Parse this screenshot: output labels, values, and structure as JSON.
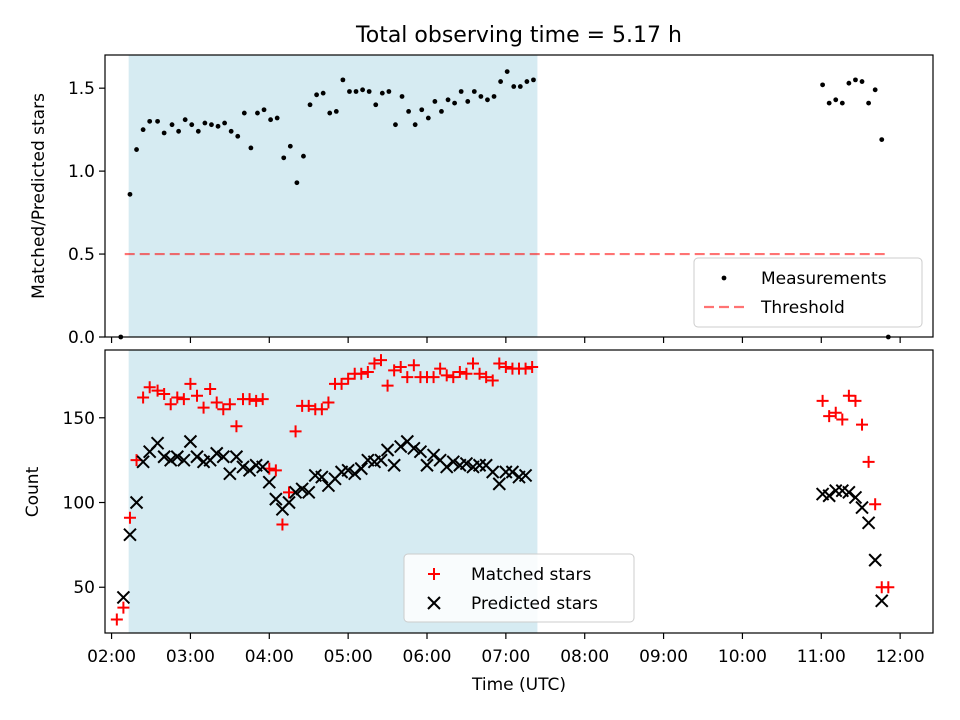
{
  "figure_title": "Total observing time = 5.17 h",
  "chart_data": [
    {
      "type": "scatter",
      "ylabel": "Matched/Predicted stars",
      "xlabel": "",
      "xlim": [
        "01:55",
        "12:25"
      ],
      "ylim": [
        0,
        1.7
      ],
      "yticks": [
        "0.0",
        "0.5",
        "1.0",
        "1.5"
      ],
      "xticks": [
        "02:00",
        "03:00",
        "04:00",
        "05:00",
        "06:00",
        "07:00",
        "08:00",
        "09:00",
        "10:00",
        "11:00",
        "12:00"
      ],
      "shaded_region": {
        "x": [
          "02:13",
          "07:24"
        ],
        "color": "#add8e6"
      },
      "legend": {
        "location": "lower-right",
        "entries": [
          "Measurements",
          "Threshold"
        ]
      },
      "threshold": {
        "name": "Threshold",
        "value": 0.5,
        "x": [
          "02:10",
          "11:50"
        ],
        "color": "#ff0000"
      },
      "series": [
        {
          "name": "Measurements",
          "marker": "dot",
          "color": "#000000",
          "points": [
            [
              "02:07",
              0.0
            ],
            [
              "02:14",
              0.86
            ],
            [
              "02:19",
              1.13
            ],
            [
              "02:24",
              1.25
            ],
            [
              "02:29",
              1.3
            ],
            [
              "02:35",
              1.3
            ],
            [
              "02:40",
              1.23
            ],
            [
              "02:46",
              1.28
            ],
            [
              "02:51",
              1.24
            ],
            [
              "02:56",
              1.31
            ],
            [
              "03:01",
              1.28
            ],
            [
              "03:06",
              1.24
            ],
            [
              "03:11",
              1.29
            ],
            [
              "03:16",
              1.28
            ],
            [
              "03:21",
              1.27
            ],
            [
              "03:26",
              1.29
            ],
            [
              "03:31",
              1.24
            ],
            [
              "03:36",
              1.21
            ],
            [
              "03:41",
              1.35
            ],
            [
              "03:46",
              1.14
            ],
            [
              "03:51",
              1.35
            ],
            [
              "03:56",
              1.37
            ],
            [
              "04:01",
              1.31
            ],
            [
              "04:06",
              1.32
            ],
            [
              "04:11",
              1.08
            ],
            [
              "04:16",
              1.15
            ],
            [
              "04:21",
              0.93
            ],
            [
              "04:26",
              1.09
            ],
            [
              "04:31",
              1.4
            ],
            [
              "04:36",
              1.46
            ],
            [
              "04:41",
              1.47
            ],
            [
              "04:46",
              1.35
            ],
            [
              "04:51",
              1.36
            ],
            [
              "04:56",
              1.55
            ],
            [
              "05:01",
              1.48
            ],
            [
              "05:06",
              1.48
            ],
            [
              "05:11",
              1.49
            ],
            [
              "05:16",
              1.48
            ],
            [
              "05:21",
              1.4
            ],
            [
              "05:26",
              1.47
            ],
            [
              "05:31",
              1.48
            ],
            [
              "05:36",
              1.28
            ],
            [
              "05:41",
              1.45
            ],
            [
              "05:46",
              1.36
            ],
            [
              "05:51",
              1.28
            ],
            [
              "05:56",
              1.37
            ],
            [
              "06:01",
              1.32
            ],
            [
              "06:06",
              1.42
            ],
            [
              "06:11",
              1.36
            ],
            [
              "06:16",
              1.43
            ],
            [
              "06:21",
              1.41
            ],
            [
              "06:26",
              1.48
            ],
            [
              "06:31",
              1.42
            ],
            [
              "06:36",
              1.48
            ],
            [
              "06:41",
              1.45
            ],
            [
              "06:46",
              1.43
            ],
            [
              "06:51",
              1.45
            ],
            [
              "06:56",
              1.54
            ],
            [
              "07:01",
              1.6
            ],
            [
              "07:06",
              1.51
            ],
            [
              "07:11",
              1.51
            ],
            [
              "07:16",
              1.54
            ],
            [
              "07:21",
              1.55
            ],
            [
              "11:01",
              1.52
            ],
            [
              "11:06",
              1.41
            ],
            [
              "11:11",
              1.43
            ],
            [
              "11:16",
              1.41
            ],
            [
              "11:21",
              1.53
            ],
            [
              "11:26",
              1.55
            ],
            [
              "11:31",
              1.54
            ],
            [
              "11:36",
              1.41
            ],
            [
              "11:41",
              1.49
            ],
            [
              "11:46",
              1.19
            ],
            [
              "11:51",
              0.0
            ]
          ]
        }
      ]
    },
    {
      "type": "scatter",
      "ylabel": "Count",
      "xlabel": "Time (UTC)",
      "xlim": [
        "01:55",
        "12:25"
      ],
      "ylim": [
        23,
        190
      ],
      "yticks": [
        "50",
        "100",
        "150"
      ],
      "xticks": [
        "02:00",
        "03:00",
        "04:00",
        "05:00",
        "06:00",
        "07:00",
        "08:00",
        "09:00",
        "10:00",
        "11:00",
        "12:00"
      ],
      "shaded_region": {
        "x": [
          "02:13",
          "07:24"
        ],
        "color": "#add8e6"
      },
      "legend": {
        "location": "lower-center",
        "entries": [
          "Matched stars",
          "Predicted stars"
        ]
      },
      "series": [
        {
          "name": "Matched stars",
          "marker": "plus",
          "color": "#ff0000",
          "points": [
            [
              "02:04",
              31
            ],
            [
              "02:09",
              38
            ],
            [
              "02:14",
              91
            ],
            [
              "02:19",
              125
            ],
            [
              "02:24",
              162
            ],
            [
              "02:29",
              168
            ],
            [
              "02:35",
              166
            ],
            [
              "02:40",
              164
            ],
            [
              "02:45",
              158
            ],
            [
              "02:50",
              162
            ],
            [
              "02:55",
              161
            ],
            [
              "03:00",
              170
            ],
            [
              "03:05",
              163
            ],
            [
              "03:10",
              156
            ],
            [
              "03:15",
              167
            ],
            [
              "03:20",
              159
            ],
            [
              "03:25",
              155
            ],
            [
              "03:30",
              158
            ],
            [
              "03:35",
              145
            ],
            [
              "03:40",
              161
            ],
            [
              "03:45",
              161
            ],
            [
              "03:50",
              160
            ],
            [
              "03:55",
              161
            ],
            [
              "04:00",
              120
            ],
            [
              "04:05",
              119
            ],
            [
              "04:10",
              87
            ],
            [
              "04:15",
              106
            ],
            [
              "04:20",
              142
            ],
            [
              "04:25",
              157
            ],
            [
              "04:30",
              157
            ],
            [
              "04:35",
              155
            ],
            [
              "04:40",
              155
            ],
            [
              "04:45",
              159
            ],
            [
              "04:50",
              170
            ],
            [
              "04:55",
              170
            ],
            [
              "05:00",
              173
            ],
            [
              "05:05",
              176
            ],
            [
              "05:10",
              176
            ],
            [
              "05:15",
              177
            ],
            [
              "05:20",
              182
            ],
            [
              "05:25",
              184
            ],
            [
              "05:30",
              169
            ],
            [
              "05:35",
              178
            ],
            [
              "05:40",
              180
            ],
            [
              "05:45",
              174
            ],
            [
              "05:50",
              181
            ],
            [
              "05:55",
              174
            ],
            [
              "06:00",
              174
            ],
            [
              "06:05",
              174
            ],
            [
              "06:10",
              179
            ],
            [
              "06:15",
              175
            ],
            [
              "06:20",
              174
            ],
            [
              "06:25",
              177
            ],
            [
              "06:30",
              176
            ],
            [
              "06:35",
              182
            ],
            [
              "06:40",
              176
            ],
            [
              "06:45",
              174
            ],
            [
              "06:50",
              172
            ],
            [
              "06:55",
              182
            ],
            [
              "07:00",
              180
            ],
            [
              "07:05",
              179
            ],
            [
              "07:10",
              179
            ],
            [
              "07:15",
              179
            ],
            [
              "07:20",
              180
            ],
            [
              "11:01",
              160
            ],
            [
              "11:06",
              151
            ],
            [
              "11:11",
              153
            ],
            [
              "11:16",
              149
            ],
            [
              "11:21",
              163
            ],
            [
              "11:26",
              160
            ],
            [
              "11:31",
              146
            ],
            [
              "11:36",
              124
            ],
            [
              "11:41",
              99
            ],
            [
              "11:46",
              50
            ],
            [
              "11:51",
              50
            ]
          ]
        },
        {
          "name": "Predicted stars",
          "marker": "x",
          "color": "#000000",
          "points": [
            [
              "02:09",
              44
            ],
            [
              "02:14",
              81
            ],
            [
              "02:19",
              100
            ],
            [
              "02:24",
              124
            ],
            [
              "02:29",
              130
            ],
            [
              "02:35",
              135
            ],
            [
              "02:40",
              127
            ],
            [
              "02:45",
              125
            ],
            [
              "02:50",
              127
            ],
            [
              "02:55",
              125
            ],
            [
              "03:00",
              136
            ],
            [
              "03:05",
              127
            ],
            [
              "03:10",
              124
            ],
            [
              "03:15",
              125
            ],
            [
              "03:20",
              129
            ],
            [
              "03:25",
              127
            ],
            [
              "03:30",
              117
            ],
            [
              "03:35",
              127
            ],
            [
              "03:40",
              121
            ],
            [
              "03:45",
              119
            ],
            [
              "03:50",
              122
            ],
            [
              "03:55",
              121
            ],
            [
              "04:00",
              112
            ],
            [
              "04:05",
              102
            ],
            [
              "04:10",
              96
            ],
            [
              "04:15",
              100
            ],
            [
              "04:20",
              106
            ],
            [
              "04:25",
              108
            ],
            [
              "04:30",
              106
            ],
            [
              "04:35",
              116
            ],
            [
              "04:40",
              115
            ],
            [
              "04:45",
              110
            ],
            [
              "04:50",
              114
            ],
            [
              "04:55",
              118
            ],
            [
              "05:00",
              119
            ],
            [
              "05:05",
              117
            ],
            [
              "05:10",
              120
            ],
            [
              "05:15",
              125
            ],
            [
              "05:20",
              124
            ],
            [
              "05:25",
              125
            ],
            [
              "05:30",
              131
            ],
            [
              "05:35",
              122
            ],
            [
              "05:40",
              133
            ],
            [
              "05:45",
              136
            ],
            [
              "05:50",
              132
            ],
            [
              "05:55",
              130
            ],
            [
              "06:00",
              122
            ],
            [
              "06:05",
              128
            ],
            [
              "06:10",
              125
            ],
            [
              "06:15",
              121
            ],
            [
              "06:20",
              124
            ],
            [
              "06:25",
              122
            ],
            [
              "06:30",
              123
            ],
            [
              "06:35",
              121
            ],
            [
              "06:40",
              122
            ],
            [
              "06:45",
              122
            ],
            [
              "06:50",
              118
            ],
            [
              "06:55",
              111
            ],
            [
              "07:00",
              118
            ],
            [
              "07:05",
              118
            ],
            [
              "07:10",
              115
            ],
            [
              "07:15",
              116
            ],
            [
              "11:01",
              105
            ],
            [
              "11:06",
              104
            ],
            [
              "11:11",
              107
            ],
            [
              "11:16",
              107
            ],
            [
              "11:21",
              106
            ],
            [
              "11:26",
              103
            ],
            [
              "11:31",
              97
            ],
            [
              "11:36",
              88
            ],
            [
              "11:41",
              66
            ],
            [
              "11:46",
              42
            ]
          ]
        }
      ]
    }
  ]
}
